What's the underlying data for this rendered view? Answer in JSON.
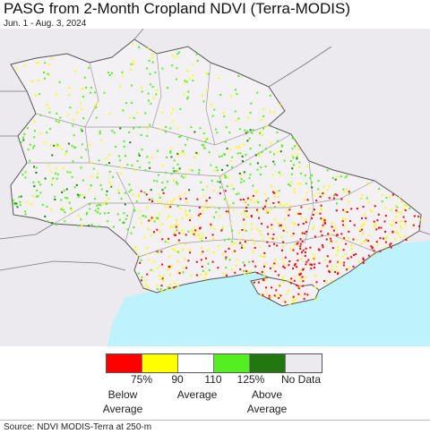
{
  "header": {
    "title": "PASG from 2-Month Cropland NDVI (Terra-MODIS)",
    "date_range": "Jun. 1 - Aug. 3, 2024"
  },
  "map": {
    "region": "Ukraine",
    "colors": {
      "sea": "#bff3fb",
      "land_outside": "#ece9ef",
      "land_inside": "#f3f1f4",
      "border": "#777777",
      "coast": "#555555"
    }
  },
  "legend": {
    "swatches": [
      {
        "color": "#ff0000",
        "label": "< 75%"
      },
      {
        "color": "#ffff00",
        "label": "75-90%"
      },
      {
        "color": "#ffffff",
        "label": "90-110%"
      },
      {
        "color": "#55ee22",
        "label": "110-125%"
      },
      {
        "color": "#227711",
        "label": "> 125%"
      },
      {
        "color": "#ece9ef",
        "label": "No Data"
      }
    ],
    "ticks": [
      "75%",
      "90",
      "110",
      "125%"
    ],
    "below": "Below\nAverage",
    "average": "Average",
    "above": "Above\nAverage",
    "nodata": "No Data"
  },
  "footer": {
    "source": "Source: NDVI MODIS-Terra at 250-m"
  }
}
